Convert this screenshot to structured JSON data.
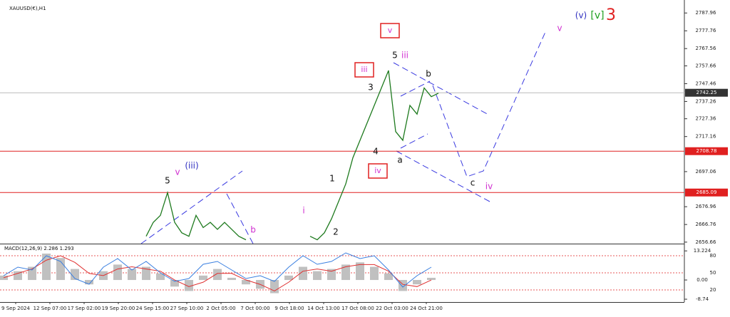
{
  "chart_data": [
    {
      "type": "line",
      "title": "XAUUSD(€),H1",
      "color": "#1e7a1e",
      "values": [
        null,
        null,
        null,
        null,
        null,
        null,
        null,
        null,
        null,
        null,
        null,
        null,
        null,
        null,
        null,
        null,
        null,
        null,
        null,
        null,
        2660,
        2668,
        2672,
        2685,
        2668,
        2662,
        2660,
        2672,
        2665,
        2668,
        2664,
        2668,
        2664,
        2660,
        2658,
        null,
        null,
        null,
        null,
        null,
        null,
        null,
        null,
        2660,
        2658,
        2662,
        2670,
        2680,
        2690,
        2705,
        2715,
        2725,
        2735,
        2745,
        2755,
        2720,
        2715,
        2735,
        2730,
        2745,
        2740,
        2742
      ],
      "ylim": [
        2655.8,
        2795.4
      ],
      "yticks": [
        2787.96,
        2777.76,
        2767.56,
        2757.66,
        2747.46,
        2737.26,
        2727.36,
        2717.16,
        2697.06,
        2676.96,
        2666.76,
        2656.66
      ],
      "price_lines": [
        {
          "value": 2742.25,
          "color": "#bbbbbb",
          "label_color": "#333333"
        },
        {
          "value": 2708.78,
          "color": "#e02020",
          "label_color": "#e02020"
        },
        {
          "value": 2685.09,
          "color": "#e02020",
          "label_color": "#e02020"
        }
      ],
      "xtick_labels": [
        "9 Sep 2024",
        "12 Sep 07:00",
        "17 Sep 02:00",
        "19 Sep 20:00",
        "24 Sep 15:00",
        "27 Sep 10:00",
        "2 Oct 05:00",
        "7 Oct 00:00",
        "9 Oct 18:00",
        "14 Oct 13:00",
        "17 Oct 08:00",
        "22 Oct 03:00",
        "24 Oct 21:00"
      ],
      "annotations": [
        {
          "text": "(v)",
          "color": "#3030c0"
        },
        {
          "text": "[v]",
          "color": "#20a020"
        },
        {
          "text": "3",
          "color": "#e02020"
        },
        {
          "text": "v",
          "color": "#d030d0"
        },
        {
          "text": "v",
          "color": "#d030d0",
          "boxed": true
        },
        {
          "text": "5",
          "color": "#111111"
        },
        {
          "text": "iii",
          "color": "#d030d0"
        },
        {
          "text": "iii",
          "color": "#d030d0",
          "boxed": true
        },
        {
          "text": "3",
          "color": "#111111"
        },
        {
          "text": "b",
          "color": "#111111"
        },
        {
          "text": "4",
          "color": "#111111"
        },
        {
          "text": "a",
          "color": "#111111"
        },
        {
          "text": "iv",
          "color": "#d030d0",
          "boxed": true
        },
        {
          "text": "c",
          "color": "#111111"
        },
        {
          "text": "iv",
          "color": "#d030d0"
        },
        {
          "text": "1",
          "color": "#111111"
        },
        {
          "text": "2",
          "color": "#111111"
        },
        {
          "text": "i",
          "color": "#d030d0"
        },
        {
          "text": "5",
          "color": "#111111"
        },
        {
          "text": "v",
          "color": "#d030d0"
        },
        {
          "text": "(iii)",
          "color": "#3030c0"
        },
        {
          "text": "b",
          "color": "#d030d0"
        }
      ]
    },
    {
      "type": "bar",
      "title": "MACD(12,26,9) 2.286 1.293",
      "color": "#c0c0c0",
      "values": [
        2,
        4,
        6,
        12,
        10,
        5,
        -2,
        4,
        7,
        5,
        6,
        3,
        -3,
        -5,
        2,
        5,
        1,
        -2,
        -4,
        -6,
        2,
        6,
        4,
        5,
        7,
        8,
        6,
        3,
        -5,
        -2,
        1
      ],
      "series": [
        {
          "color": "#e03030",
          "values": [
            1,
            3,
            5,
            9,
            11,
            8,
            3,
            2,
            5,
            6,
            5,
            4,
            0,
            -3,
            -1,
            3,
            3,
            0,
            -2,
            -5,
            -1,
            4,
            5,
            4,
            6,
            7,
            7,
            4,
            -2,
            -3,
            0
          ]
        },
        {
          "color": "#3a7fe0",
          "axis": "y2",
          "values": [
            45,
            60,
            55,
            80,
            70,
            40,
            30,
            60,
            75,
            55,
            70,
            50,
            35,
            40,
            65,
            70,
            55,
            40,
            45,
            35,
            60,
            80,
            65,
            70,
            85,
            75,
            80,
            55,
            25,
            45,
            60
          ]
        }
      ],
      "ylim": [
        -9.7,
        16.2
      ],
      "yticks": [
        13.224,
        {
          "value": 0,
          "label": "0.00"
        },
        -8.74
      ],
      "y2lim": [
        0,
        100
      ],
      "y2ticks": [
        80,
        50,
        20
      ]
    }
  ]
}
